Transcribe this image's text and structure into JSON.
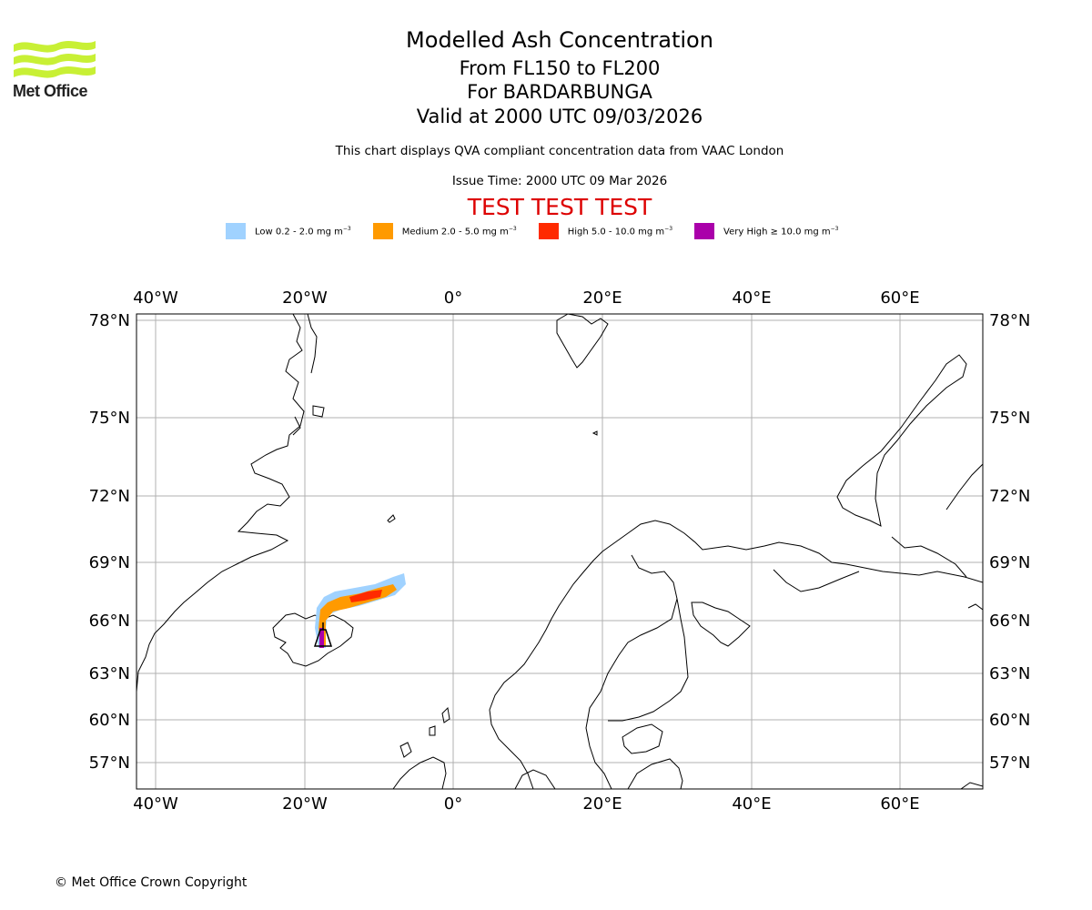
{
  "logo": {
    "text": "Met Office",
    "icon": "met-office-wave-logo",
    "color": "#c8f035"
  },
  "header": {
    "title": "Modelled Ash Concentration",
    "flight_levels": "From FL150 to FL200",
    "volcano": "For BARDARBUNGA",
    "valid": "Valid at 2000 UTC 09/03/2026",
    "description": "This chart displays QVA compliant concentration data from VAAC London",
    "issue_time": "Issue Time: 2000 UTC 09 Mar 2026",
    "test_banner": "TEST TEST TEST",
    "test_color": "#dd0000"
  },
  "legend": [
    {
      "label": "Low 0.2 - 2.0 mg m",
      "sup": "−3",
      "color": "#a0d2ff"
    },
    {
      "label": "Medium 2.0 - 5.0 mg m",
      "sup": "−3",
      "color": "#ff9a00"
    },
    {
      "label": "High 5.0 - 10.0 mg m",
      "sup": "−3",
      "color": "#ff2a00"
    },
    {
      "label": "Very High  ≥  10.0 mg m",
      "sup": "−3",
      "color": "#aa00aa"
    }
  ],
  "map": {
    "longitude_labels": [
      "40°W",
      "20°W",
      "0°",
      "20°E",
      "40°E",
      "60°E"
    ],
    "latitude_labels": [
      "78°N",
      "75°N",
      "72°N",
      "69°N",
      "66°N",
      "63°N",
      "60°N",
      "57°N"
    ],
    "volcano_icon": "volcano-marker-icon"
  },
  "footer": {
    "copyright": "© Met Office Crown Copyright"
  }
}
